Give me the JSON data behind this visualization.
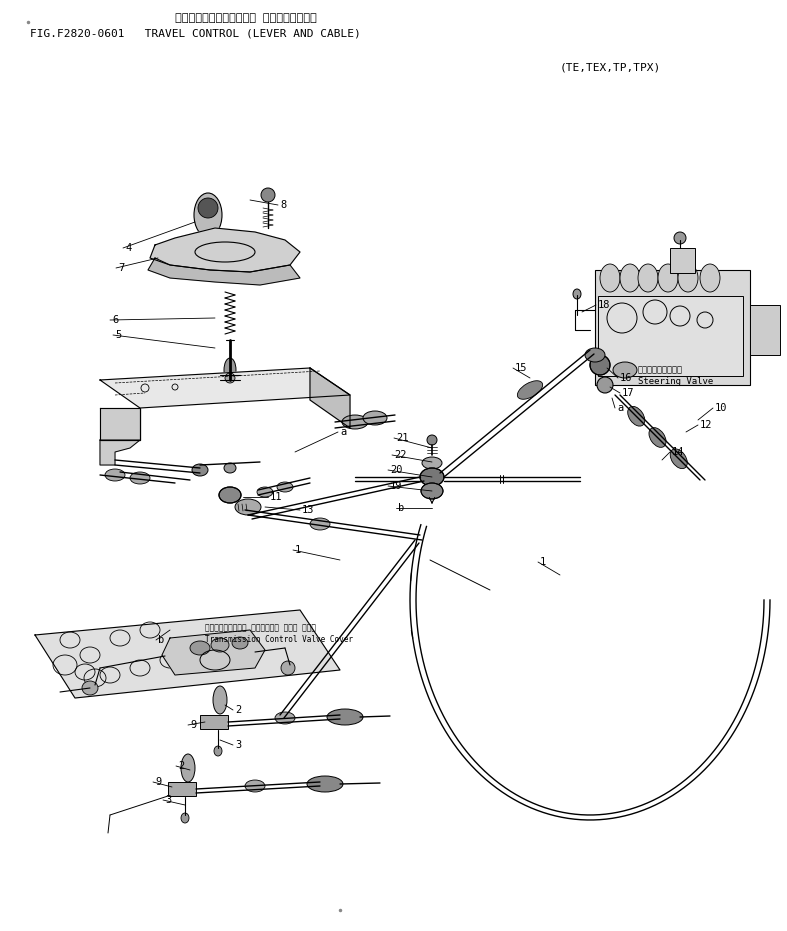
{
  "title_japanese": "ソワコントロール（レバー オヨビケーブル）",
  "title_line1": "FIG.F2820-0601   TRAVEL CONTROL (LEVER AND CABLE)",
  "subtitle": "(TE,TEX,TP,TPX)",
  "bg_color": "#ffffff",
  "line_color": "#000000",
  "text_color": "#000000",
  "fig_width": 7.87,
  "fig_height": 9.31,
  "dpi": 100
}
